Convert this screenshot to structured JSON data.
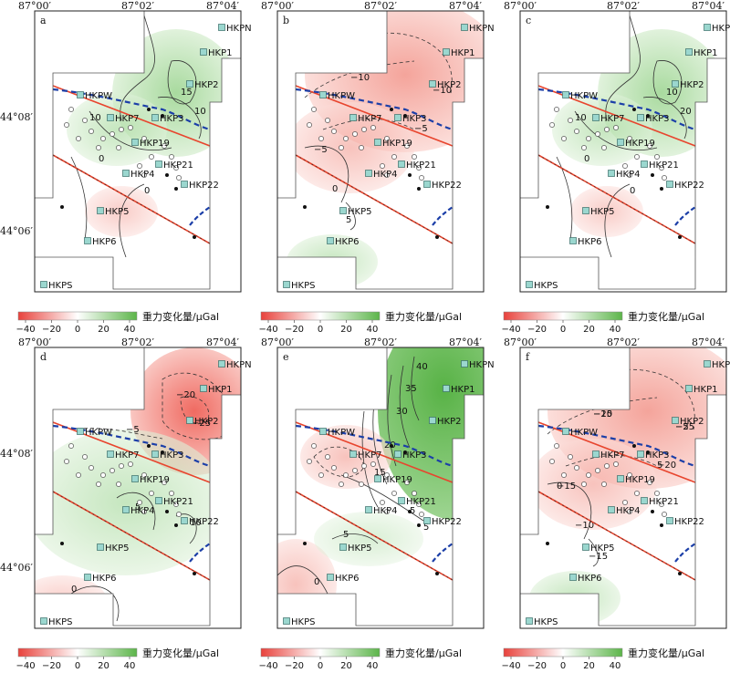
{
  "axes": {
    "lon_ticks": [
      "87°00′",
      "87°02′",
      "87°04′"
    ],
    "lat_ticks": [
      "44°08′",
      "44°06′"
    ]
  },
  "colorbar": {
    "title": "重力变化量/μGal",
    "ticks": [
      "−40",
      "−20",
      "0",
      "20",
      "40"
    ],
    "colors": {
      "negative": "#e8423c",
      "zero": "#ffffff",
      "positive": "#5cb54a"
    }
  },
  "colors": {
    "fault": "#e8452e",
    "dashed_line": "#1c3fa8",
    "station_fill": "#9bd7cf",
    "contour": "#333333"
  },
  "stations": [
    "HKPN",
    "HKP1",
    "HKP2",
    "HKPW",
    "HKP7",
    "HKP3",
    "HKP19",
    "HKP21",
    "HKP4",
    "HKP22",
    "HKP5",
    "HKP6",
    "HKPS"
  ],
  "panels": [
    {
      "letter": "a",
      "tone": "positive",
      "contour_labels": [
        "15",
        "10",
        "10",
        "0",
        "0"
      ]
    },
    {
      "letter": "b",
      "tone": "negative",
      "contour_labels": [
        "−10",
        "−10",
        "−5",
        "−5",
        "0",
        "5"
      ]
    },
    {
      "letter": "c",
      "tone": "positive",
      "contour_labels": [
        "10",
        "20",
        "10",
        "0",
        "0"
      ]
    },
    {
      "letter": "d",
      "tone": "mixed-negative-north",
      "contour_labels": [
        "−20",
        "−25",
        "−5",
        "5",
        "10",
        "0"
      ]
    },
    {
      "letter": "e",
      "tone": "strong-positive-northeast",
      "contour_labels": [
        "40",
        "35",
        "30",
        "20",
        "15",
        "5",
        "5",
        "0",
        "5"
      ]
    },
    {
      "letter": "f",
      "tone": "negative",
      "contour_labels": [
        "−25",
        "−25",
        "−20",
        "−15",
        "−10",
        "−15",
        "−10",
        "−5",
        "5",
        "0"
      ]
    }
  ]
}
